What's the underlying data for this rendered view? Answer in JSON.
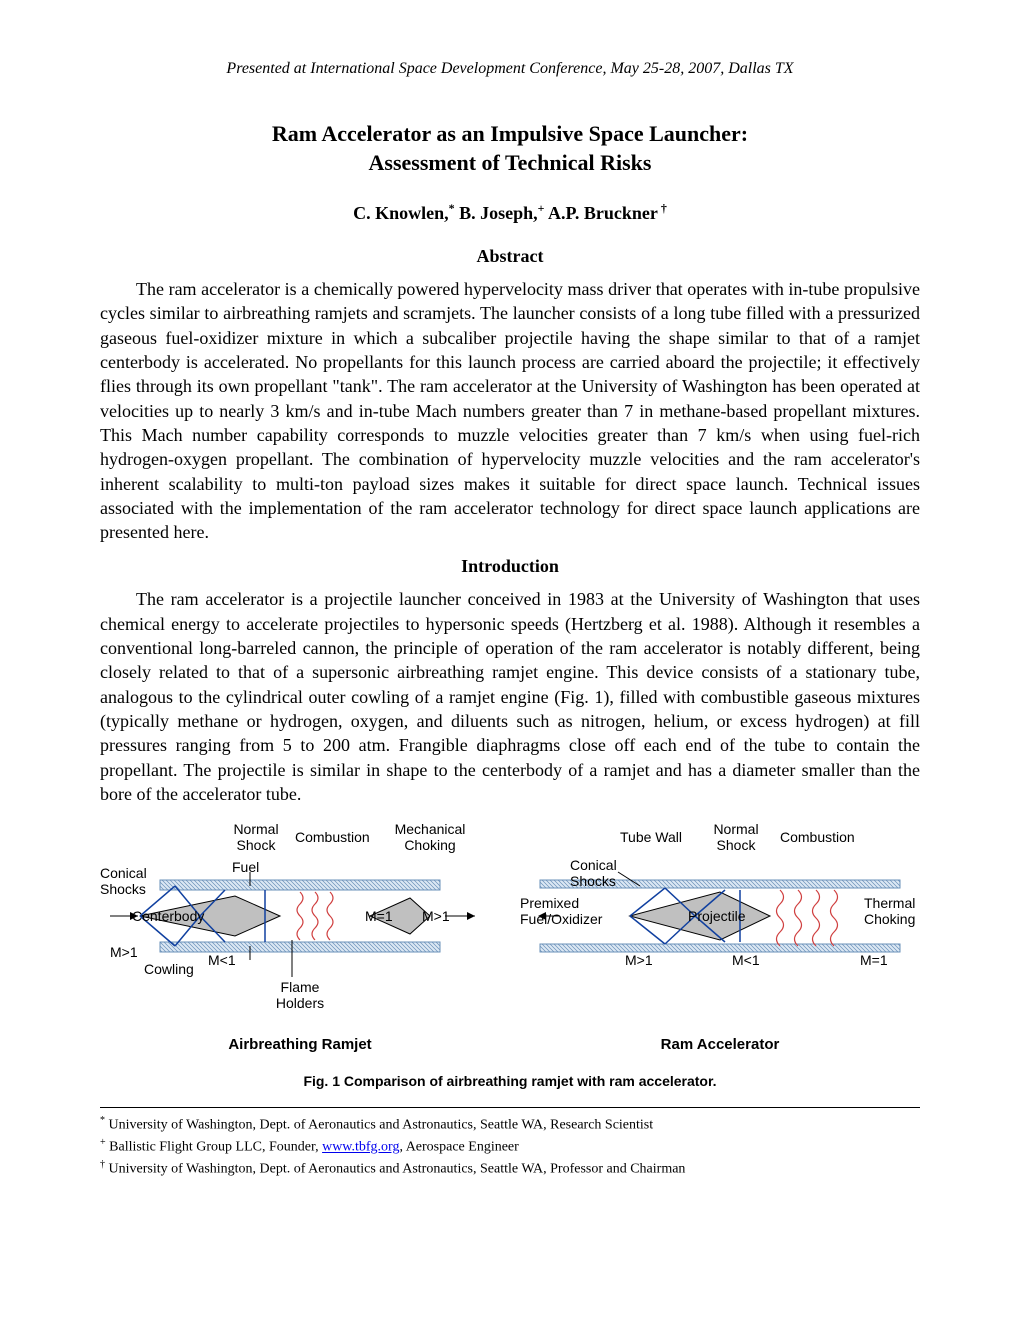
{
  "header": {
    "conference": "Presented at International Space Development Conference, May 25-28, 2007, Dallas TX"
  },
  "title": {
    "line1": "Ram Accelerator as an Impulsive Space Launcher:",
    "line2": "Assessment of Technical Risks"
  },
  "authors": {
    "a1_name": "C. Knowlen,",
    "a1_mark": "*",
    "a2_name": " B. Joseph,",
    "a2_mark": "+",
    "a3_name": " A.P. Bruckner",
    "a3_mark": " †"
  },
  "sections": {
    "abstract_head": "Abstract",
    "abstract_body": "The ram accelerator is a chemically powered hypervelocity mass driver that operates with in-tube propulsive cycles similar to airbreathing ramjets and scramjets.  The launcher consists of a long tube filled with a pressurized gaseous fuel-oxidizer mixture in which a subcaliber projectile having the shape similar to that of a ramjet centerbody is accelerated.  No propellants for this launch process are carried aboard the projectile; it effectively flies through its own propellant \"tank\".  The ram accelerator at the University of Washington has been operated at velocities up to nearly 3 km/s and in-tube Mach numbers greater than 7 in methane-based propellant mixtures.  This Mach number capability corresponds to muzzle velocities greater than 7 km/s when using fuel-rich hydrogen-oxygen propellant.  The combination of hypervelocity muzzle velocities and the ram accelerator's inherent scalability to multi-ton payload sizes makes it suitable for direct space launch.  Technical issues associated with the implementation of the ram accelerator technology for direct space launch applications are presented here.",
    "intro_head": "Introduction",
    "intro_body": "The ram accelerator is a projectile launcher conceived in 1983 at the University of Washington that uses chemical energy to accelerate projectiles to hypersonic speeds (Hertzberg et al. 1988).  Although it resembles a conventional long-barreled cannon, the principle of operation of the ram accelerator is notably different, being closely related to that of a supersonic airbreathing ramjet engine.  This device consists of a stationary tube, analogous to the cylindrical outer cowling of a ramjet engine (Fig. 1), filled with combustible gaseous mixtures (typically methane or hydrogen, oxygen, and diluents such as nitrogen, helium, or excess hydrogen) at fill pressures ranging from 5 to 200 atm.  Frangible diaphragms close off each end of the tube to contain the propellant.  The projectile is similar in shape to the centerbody of a ramjet and has a diameter smaller than the bore of the accelerator tube."
  },
  "figure": {
    "left_sub": "Airbreathing Ramjet",
    "right_sub": "Ram Accelerator",
    "caption": "Fig. 1  Comparison of airbreathing ramjet with ram accelerator.",
    "labels": {
      "conical_shocks": "Conical\nShocks",
      "normal_shock": "Normal\nShock",
      "combustion": "Combustion",
      "mechanical_choking": "Mechanical\nChoking",
      "fuel": "Fuel",
      "centerbody": "Centerbody",
      "cowling": "Cowling",
      "flame_holders": "Flame\nHolders",
      "m_gt1": "M>1",
      "m_lt1": "M<1",
      "m_eq1": "M=1",
      "tube_wall": "Tube Wall",
      "premixed": "Premixed\nFuel/Oxidizer",
      "projectile": "Projectile",
      "thermal_choking": "Thermal\nChoking"
    },
    "colors": {
      "cowl_blue": "#6a90b8",
      "shock_blue": "#1040a0",
      "flame_red": "#d04040",
      "body_gray": "#c0c0c0"
    }
  },
  "footnotes": {
    "f1_mark": "*",
    "f1_text": " University of Washington, Dept. of Aeronautics and Astronautics, Seattle WA, Research Scientist",
    "f2_mark": "+",
    "f2_pre": " Ballistic Flight Group LLC, Founder, ",
    "f2_link": "www.tbfg.org",
    "f2_post": ", Aerospace Engineer",
    "f3_mark": "†",
    "f3_text": " University of Washington, Dept. of Aeronautics and Astronautics, Seattle WA, Professor and Chairman"
  }
}
